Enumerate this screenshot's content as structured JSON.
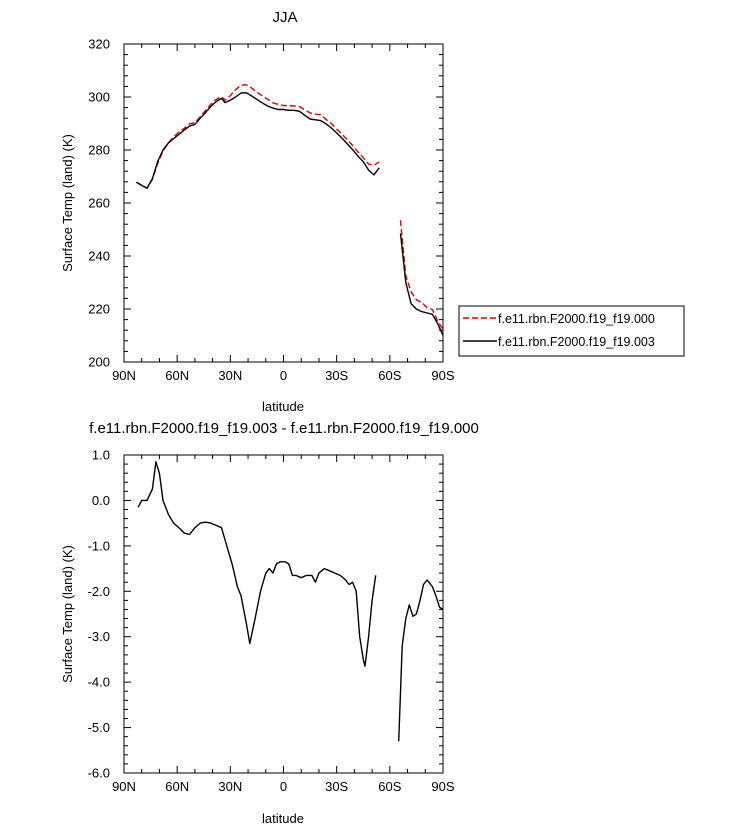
{
  "chart_data": [
    {
      "type": "line",
      "title": "JJA",
      "xlabel": "latitude",
      "ylabel": "Surface Temp (land) (K)",
      "xlim": [
        90,
        -90
      ],
      "ylim": [
        200,
        320
      ],
      "x_ticks": [
        90,
        60,
        30,
        0,
        -30,
        -60,
        -90
      ],
      "x_tick_labels": [
        "90N",
        "60N",
        "30N",
        "0",
        "30S",
        "60S",
        "90S"
      ],
      "y_ticks": [
        200,
        220,
        240,
        260,
        280,
        300,
        320
      ],
      "y_tick_labels": [
        "200",
        "220",
        "240",
        "260",
        "280",
        "300",
        "320"
      ],
      "legend_position": "right",
      "series": [
        {
          "name": "f.e11.rbn.F2000.f19_f19.000",
          "color": "#e00000",
          "dash": "dashed",
          "segments": [
            [
              [
                83,
                267.9
              ],
              [
                80,
                266.8
              ],
              [
                77,
                265.6
              ],
              [
                74,
                268.9
              ],
              [
                71,
                274.9
              ],
              [
                68,
                279.6
              ],
              [
                65,
                282.7
              ],
              [
                62,
                284.9
              ],
              [
                59,
                286.7
              ],
              [
                56,
                288.2
              ],
              [
                53,
                289.9
              ],
              [
                50,
                290.3
              ],
              [
                47,
                292.5
              ],
              [
                44,
                294.9
              ],
              [
                41,
                297.2
              ],
              [
                38,
                299.1
              ],
              [
                35,
                300.1
              ],
              [
                33,
                298.8
              ],
              [
                30,
                300.5
              ],
              [
                27,
                302.7
              ],
              [
                24,
                304.5
              ],
              [
                21,
                304.6
              ],
              [
                18,
                303.4
              ],
              [
                15,
                301.8
              ],
              [
                12,
                300.5
              ],
              [
                9,
                299.2
              ],
              [
                6,
                297.8
              ],
              [
                3,
                297.2
              ],
              [
                0,
                296.8
              ],
              [
                -3,
                296.7
              ],
              [
                -6,
                296.6
              ],
              [
                -9,
                296.4
              ],
              [
                -12,
                295.1
              ],
              [
                -15,
                294.0
              ],
              [
                -18,
                293.5
              ],
              [
                -21,
                293.3
              ],
              [
                -24,
                291.6
              ],
              [
                -27,
                290.0
              ],
              [
                -30,
                287.9
              ],
              [
                -33,
                286.0
              ],
              [
                -36,
                283.9
              ],
              [
                -39,
                281.7
              ],
              [
                -42,
                279.3
              ],
              [
                -45,
                277.1
              ],
              [
                -48,
                274.7
              ],
              [
                -51,
                274.2
              ],
              [
                -54,
                275.5
              ]
            ],
            [
              [
                -66,
                253.5
              ],
              [
                -69,
                232.5
              ],
              [
                -72,
                226.5
              ],
              [
                -75,
                223.5
              ],
              [
                -78,
                222.5
              ],
              [
                -81,
                220.5
              ],
              [
                -84,
                219.8
              ],
              [
                -87,
                215.5
              ],
              [
                -90,
                212.2
              ]
            ]
          ]
        },
        {
          "name": "f.e11.rbn.F2000.f19_f19.003",
          "color": "#000000",
          "dash": "solid",
          "segments": [
            [
              [
                83,
                267.8
              ],
              [
                80,
                266.6
              ],
              [
                77,
                265.6
              ],
              [
                74,
                269.2
              ],
              [
                71,
                275.7
              ],
              [
                68,
                280.0
              ],
              [
                65,
                282.6
              ],
              [
                62,
                284.3
              ],
              [
                59,
                285.9
              ],
              [
                56,
                287.6
              ],
              [
                53,
                289.0
              ],
              [
                50,
                289.7
              ],
              [
                47,
                292.0
              ],
              [
                44,
                294.1
              ],
              [
                41,
                296.4
              ],
              [
                38,
                298.3
              ],
              [
                35,
                299.5
              ],
              [
                33,
                297.9
              ],
              [
                30,
                298.8
              ],
              [
                27,
                300.0
              ],
              [
                24,
                301.5
              ],
              [
                21,
                301.6
              ],
              [
                18,
                300.4
              ],
              [
                15,
                299.1
              ],
              [
                12,
                297.8
              ],
              [
                9,
                296.6
              ],
              [
                6,
                295.8
              ],
              [
                3,
                295.3
              ],
              [
                0,
                295.3
              ],
              [
                -3,
                295.0
              ],
              [
                -6,
                295.0
              ],
              [
                -9,
                294.6
              ],
              [
                -12,
                293.1
              ],
              [
                -15,
                291.7
              ],
              [
                -18,
                291.4
              ],
              [
                -21,
                291.1
              ],
              [
                -24,
                289.9
              ],
              [
                -27,
                288.3
              ],
              [
                -30,
                286.4
              ],
              [
                -33,
                284.5
              ],
              [
                -36,
                282.3
              ],
              [
                -39,
                280.1
              ],
              [
                -42,
                277.7
              ],
              [
                -45,
                275.6
              ],
              [
                -48,
                272.4
              ],
              [
                -51,
                270.6
              ],
              [
                -54,
                273.3
              ]
            ],
            [
              [
                -66,
                248.5
              ],
              [
                -69,
                230.0
              ],
              [
                -72,
                222.0
              ],
              [
                -75,
                220.0
              ],
              [
                -78,
                219.0
              ],
              [
                -81,
                218.5
              ],
              [
                -84,
                218.0
              ],
              [
                -87,
                214.5
              ],
              [
                -90,
                210.0
              ]
            ]
          ]
        }
      ]
    },
    {
      "type": "line",
      "title": "f.e11.rbn.F2000.f19_f19.003 - f.e11.rbn.F2000.f19_f19.000",
      "xlabel": "latitude",
      "ylabel": "Surface Temp (land) (K)",
      "xlim": [
        90,
        -90
      ],
      "ylim": [
        -6,
        1
      ],
      "x_ticks": [
        90,
        60,
        30,
        0,
        -30,
        -60,
        -90
      ],
      "x_tick_labels": [
        "90N",
        "60N",
        "30N",
        "0",
        "30S",
        "60S",
        "90S"
      ],
      "y_ticks": [
        1,
        0,
        -1,
        -2,
        -3,
        -4,
        -5,
        -6
      ],
      "y_tick_labels": [
        "1.0",
        "0.0",
        "-1.0",
        "-2.0",
        "-3.0",
        "-4.0",
        "-5.0",
        "-6.0"
      ],
      "series": [
        {
          "color": "#000000",
          "dash": "solid",
          "segments": [
            [
              [
                82,
                -0.15
              ],
              [
                80,
                0.0
              ],
              [
                77,
                0.0
              ],
              [
                74,
                0.25
              ],
              [
                72,
                0.85
              ],
              [
                70,
                0.6
              ],
              [
                68,
                0.0
              ],
              [
                65,
                -0.3
              ],
              [
                62,
                -0.5
              ],
              [
                59,
                -0.6
              ],
              [
                56,
                -0.72
              ],
              [
                53,
                -0.75
              ],
              [
                50,
                -0.6
              ],
              [
                47,
                -0.5
              ],
              [
                44,
                -0.48
              ],
              [
                41,
                -0.5
              ],
              [
                38,
                -0.55
              ],
              [
                35,
                -0.6
              ],
              [
                32,
                -1.0
              ],
              [
                29,
                -1.4
              ],
              [
                26,
                -1.9
              ],
              [
                24,
                -2.1
              ],
              [
                21,
                -2.7
              ],
              [
                19,
                -3.15
              ],
              [
                16,
                -2.6
              ],
              [
                13,
                -2.0
              ],
              [
                10,
                -1.6
              ],
              [
                8,
                -1.5
              ],
              [
                6,
                -1.6
              ],
              [
                4,
                -1.4
              ],
              [
                2,
                -1.35
              ],
              [
                -1,
                -1.35
              ],
              [
                -3,
                -1.4
              ],
              [
                -5,
                -1.65
              ],
              [
                -7,
                -1.65
              ],
              [
                -10,
                -1.7
              ],
              [
                -13,
                -1.65
              ],
              [
                -16,
                -1.65
              ],
              [
                -18,
                -1.8
              ],
              [
                -20,
                -1.6
              ],
              [
                -23,
                -1.5
              ],
              [
                -26,
                -1.55
              ],
              [
                -29,
                -1.6
              ],
              [
                -32,
                -1.65
              ],
              [
                -35,
                -1.75
              ],
              [
                -37,
                -1.85
              ],
              [
                -39,
                -1.8
              ],
              [
                -41,
                -2.0
              ],
              [
                -43,
                -3.0
              ],
              [
                -45,
                -3.5
              ],
              [
                -46,
                -3.65
              ],
              [
                -48,
                -3.0
              ],
              [
                -50,
                -2.2
              ],
              [
                -52,
                -1.65
              ]
            ],
            [
              [
                -65,
                -5.3
              ],
              [
                -67,
                -3.2
              ],
              [
                -69,
                -2.6
              ],
              [
                -71,
                -2.3
              ],
              [
                -73,
                -2.55
              ],
              [
                -75,
                -2.5
              ],
              [
                -77,
                -2.2
              ],
              [
                -79,
                -1.85
              ],
              [
                -81,
                -1.75
              ],
              [
                -84,
                -1.9
              ],
              [
                -86,
                -2.1
              ],
              [
                -88,
                -2.35
              ],
              [
                -90,
                -2.4
              ]
            ]
          ]
        }
      ]
    }
  ]
}
